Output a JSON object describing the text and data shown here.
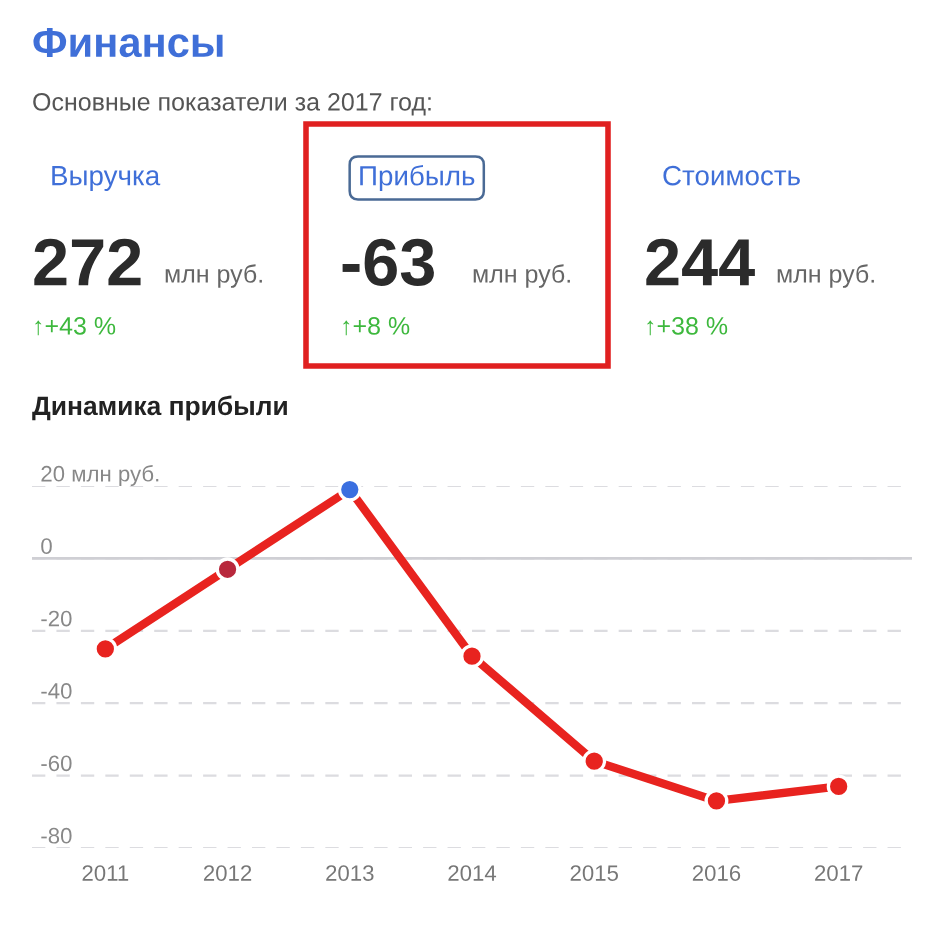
{
  "chart_data": [
    {
      "type": "other",
      "title": "Финансы",
      "subtitle": "Основные показатели за 2017 год:",
      "annotations": [
        "Выручка",
        "272",
        "млн руб.",
        "↑+43 %",
        "Прибыль",
        "-63",
        "млн руб.",
        "↑+8 %",
        "Стоимость",
        "244",
        "млн руб.",
        "↑+38 %"
      ]
    },
    {
      "type": "line",
      "title": "Динамика прибыли",
      "categories": [
        "2011",
        "2012",
        "2013",
        "2014",
        "2015",
        "2016",
        "2017"
      ],
      "series": [
        {
          "color": "#e8231f",
          "colors": [
            "#e8231f",
            "#b8283c",
            "#3a6fe0",
            "#e8231f",
            "#e8231f",
            "#e8231f",
            "#e8231f"
          ],
          "values": [
            -25,
            -3,
            19,
            -27,
            -56,
            -67,
            -63
          ]
        }
      ],
      "ylim": [
        -80,
        20
      ],
      "yticks": [
        {
          "value": 20,
          "label": "20 млн руб."
        },
        0,
        -20,
        -40,
        -60,
        -80
      ],
      "grid": "y",
      "marker": "circle",
      "line_style": "solid",
      "legend": false,
      "ref_lines": [
        {
          "axis": "y",
          "value": 0,
          "color": "#cfcfd4"
        }
      ]
    }
  ]
}
